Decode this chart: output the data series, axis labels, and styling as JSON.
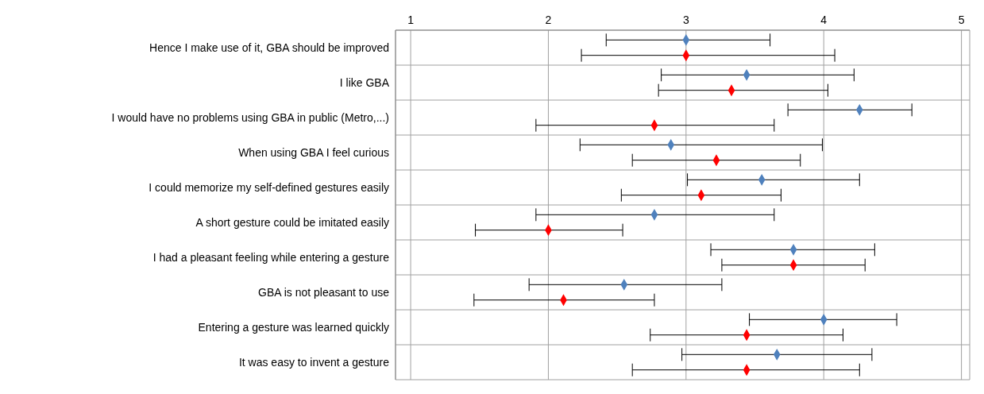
{
  "chart_data": {
    "type": "scatter",
    "orientation": "horizontal",
    "marker": "diamond",
    "grid": true,
    "categories": [
      "Hence I make use of it, GBA should be improved",
      "I like GBA",
      "I would have no problems using GBA in public (Metro,...)",
      "When using GBA I feel curious",
      "I could memorize my self-defined gestures easily",
      "A short gesture could be imitated easily",
      "I had a pleasant feeling while entering a gesture",
      "GBA is not pleasant  to use",
      "Entering a gesture was learned quickly",
      "It was easy to invent a gesture"
    ],
    "series": [
      {
        "color": "#4f81bd",
        "values": [
          3.0,
          3.44,
          4.26,
          2.89,
          3.55,
          2.77,
          3.78,
          2.55,
          4.0,
          3.66
        ],
        "errors": [
          [
            2.42,
            3.61
          ],
          [
            2.82,
            4.22
          ],
          [
            3.74,
            4.64
          ],
          [
            2.23,
            3.99
          ],
          [
            3.01,
            4.26
          ],
          [
            1.91,
            3.64
          ],
          [
            3.18,
            4.37
          ],
          [
            1.86,
            3.26
          ],
          [
            3.46,
            4.53
          ],
          [
            2.97,
            4.35
          ]
        ]
      },
      {
        "color": "#ff0000",
        "values": [
          3.0,
          3.33,
          2.77,
          3.22,
          3.11,
          2.0,
          3.78,
          2.11,
          3.44,
          3.44
        ],
        "errors": [
          [
            2.24,
            4.08
          ],
          [
            2.8,
            4.03
          ],
          [
            1.91,
            3.64
          ],
          [
            2.61,
            3.83
          ],
          [
            2.53,
            3.69
          ],
          [
            1.47,
            2.54
          ],
          [
            3.26,
            4.3
          ],
          [
            1.46,
            2.77
          ],
          [
            2.74,
            4.14
          ],
          [
            2.61,
            4.26
          ]
        ]
      }
    ],
    "xlim": [
      0.89,
      5.06
    ],
    "xticks": [
      1,
      2,
      3,
      4,
      5
    ]
  }
}
